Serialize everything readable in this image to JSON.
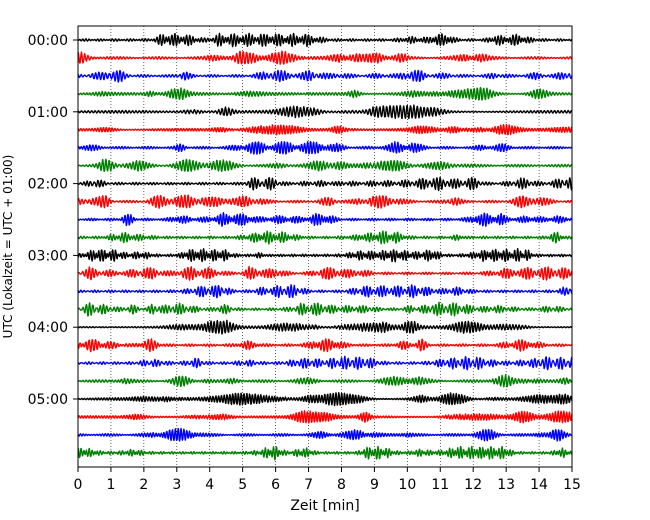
{
  "chart_data": {
    "type": "line",
    "subtype": "helicorder",
    "xlabel": "Zeit  [min]",
    "ylabel": "UTC (Lokalzeit = UTC + 01:00)",
    "xlim": [
      0,
      15
    ],
    "x_ticks": [
      "0",
      "1",
      "2",
      "3",
      "4",
      "5",
      "6",
      "7",
      "8",
      "9",
      "10",
      "11",
      "12",
      "13",
      "14",
      "15"
    ],
    "y_ticks": [
      "00:00",
      "01:00",
      "02:00",
      "03:00",
      "04:00",
      "05:00"
    ],
    "grid": "vertical dotted lines at each minute",
    "trace_count": 24,
    "minutes_per_trace": 15,
    "trace_colors": [
      "#000000",
      "#ff0000",
      "#0000ff",
      "#008000"
    ]
  }
}
